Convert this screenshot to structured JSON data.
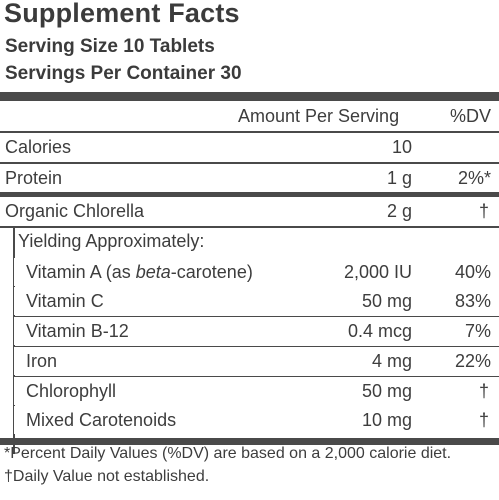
{
  "header": {
    "title": "Supplement Facts",
    "serving_size": "Serving Size 10 Tablets",
    "servings_per_container": "Servings Per Container 30"
  },
  "columns": {
    "amount": "Amount Per Serving",
    "dv": "%DV"
  },
  "rows": [
    {
      "name": "Calories",
      "amount": "10",
      "dv": ""
    },
    {
      "name": "Protein",
      "amount": "1 g",
      "dv": "2%*"
    },
    {
      "name": "Organic Chlorella",
      "amount": "2 g",
      "dv": "†"
    }
  ],
  "yielding_label": "Yielding Approximately:",
  "sub_rows": [
    {
      "name_prefix": "Vitamin A (as ",
      "name_italic": "beta",
      "name_suffix": "-carotene)",
      "amount": "2,000 IU",
      "dv": "40%"
    },
    {
      "name_prefix": "Vitamin C",
      "name_italic": "",
      "name_suffix": "",
      "amount": "50 mg",
      "dv": "83%"
    },
    {
      "name_prefix": "Vitamin B-12",
      "name_italic": "",
      "name_suffix": "",
      "amount": "0.4 mcg",
      "dv": "7%"
    },
    {
      "name_prefix": "Iron",
      "name_italic": "",
      "name_suffix": "",
      "amount": "4 mg",
      "dv": "22%"
    },
    {
      "name_prefix": "Chlorophyll",
      "name_italic": "",
      "name_suffix": "",
      "amount": "50 mg",
      "dv": "†"
    },
    {
      "name_prefix": "Mixed Carotenoids",
      "name_italic": "",
      "name_suffix": "",
      "amount": "10 mg",
      "dv": "†"
    }
  ],
  "footnotes": [
    "*Percent Daily Values (%DV) are based on a 2,000 calorie diet.",
    "†Daily Value not established."
  ]
}
